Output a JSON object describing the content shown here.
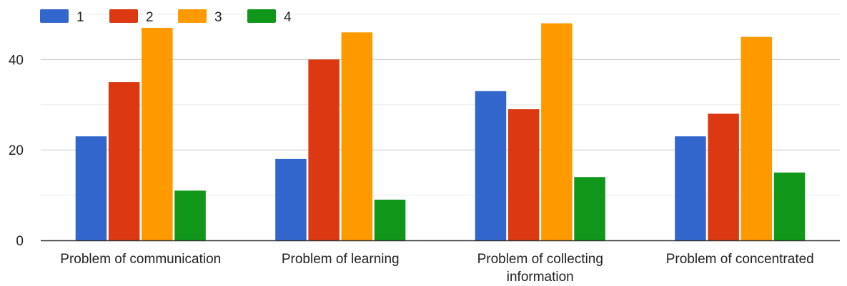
{
  "chart_data": {
    "type": "bar",
    "title": "",
    "xlabel": "",
    "ylabel": "",
    "categories": [
      [
        "Problem of communication"
      ],
      [
        "Problem of learning"
      ],
      [
        "Problem of collecting",
        "information"
      ],
      [
        "Problem of concentrated"
      ]
    ],
    "series": [
      {
        "name": "1",
        "color": "#3366cc",
        "values": [
          23,
          18,
          33,
          23
        ]
      },
      {
        "name": "2",
        "color": "#dc3912",
        "values": [
          35,
          40,
          29,
          28
        ]
      },
      {
        "name": "3",
        "color": "#ff9900",
        "values": [
          47,
          46,
          48,
          45
        ]
      },
      {
        "name": "4",
        "color": "#109618",
        "values": [
          11,
          9,
          14,
          15
        ]
      }
    ],
    "ylim": [
      0,
      50
    ],
    "yticks": [
      0,
      20,
      40
    ],
    "gridlines": [
      10,
      20,
      30,
      40,
      50
    ],
    "grid": true,
    "legend_position": "top-left"
  }
}
